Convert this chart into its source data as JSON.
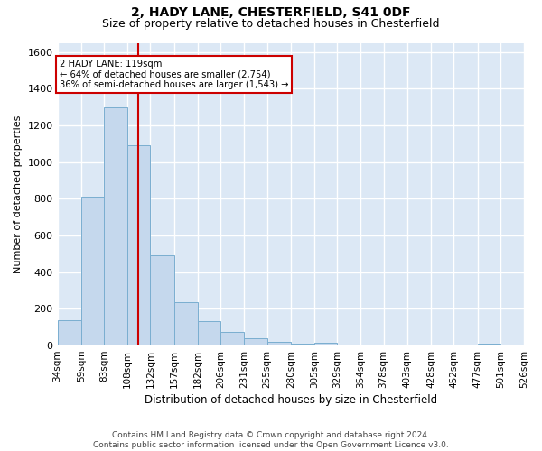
{
  "title_line1": "2, HADY LANE, CHESTERFIELD, S41 0DF",
  "title_line2": "Size of property relative to detached houses in Chesterfield",
  "xlabel": "Distribution of detached houses by size in Chesterfield",
  "ylabel": "Number of detached properties",
  "bar_color": "#c5d8ed",
  "bar_edge_color": "#7aaed0",
  "background_color": "#dce8f5",
  "grid_color": "#ffffff",
  "vline_color": "#cc0000",
  "vline_x": 119,
  "annotation_line1": "2 HADY LANE: 119sqm",
  "annotation_line2": "← 64% of detached houses are smaller (2,754)",
  "annotation_line3": "36% of semi-detached houses are larger (1,543) →",
  "annotation_box_color": "#ffffff",
  "annotation_box_edge_color": "#cc0000",
  "bins": [
    34,
    59,
    83,
    108,
    132,
    157,
    182,
    206,
    231,
    255,
    280,
    305,
    329,
    354,
    378,
    403,
    428,
    452,
    477,
    501,
    526
  ],
  "bin_labels": [
    "34sqm",
    "59sqm",
    "83sqm",
    "108sqm",
    "132sqm",
    "157sqm",
    "182sqm",
    "206sqm",
    "231sqm",
    "255sqm",
    "280sqm",
    "305sqm",
    "329sqm",
    "354sqm",
    "378sqm",
    "403sqm",
    "428sqm",
    "452sqm",
    "477sqm",
    "501sqm",
    "526sqm"
  ],
  "bar_heights": [
    140,
    810,
    1300,
    1090,
    490,
    235,
    135,
    75,
    40,
    20,
    10,
    15,
    5,
    5,
    3,
    3,
    2,
    2,
    10,
    0
  ],
  "ylim": [
    0,
    1650
  ],
  "yticks": [
    0,
    200,
    400,
    600,
    800,
    1000,
    1200,
    1400,
    1600
  ],
  "footer_text": "Contains HM Land Registry data © Crown copyright and database right 2024.\nContains public sector information licensed under the Open Government Licence v3.0.",
  "title_fontsize": 10,
  "subtitle_fontsize": 9,
  "footer_fontsize": 6.5
}
